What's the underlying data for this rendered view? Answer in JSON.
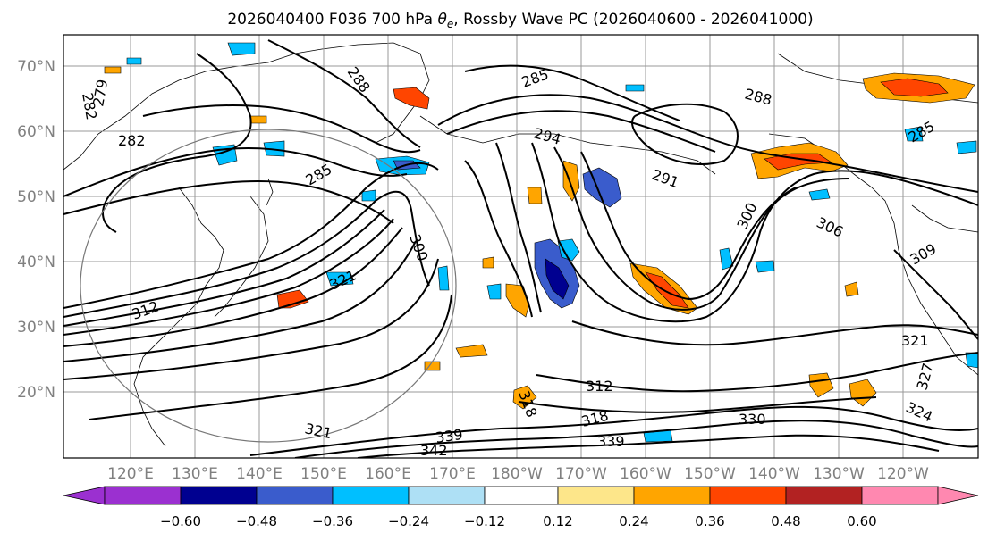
{
  "title": {
    "prefix": "2026040400 F036 700 hPa ",
    "theta": "θ",
    "sub": "e",
    "suffix": ", Rossby Wave PC (2026040600 - 2026041000)"
  },
  "map": {
    "lat_labels": [
      "70°N",
      "60°N",
      "50°N",
      "40°N",
      "30°N",
      "20°N"
    ],
    "lon_labels": [
      "120°E",
      "130°E",
      "140°E",
      "150°E",
      "160°E",
      "170°E",
      "180°W",
      "170°W",
      "160°W",
      "150°W",
      "140°W",
      "130°W",
      "120°W"
    ],
    "contour_labels": [
      {
        "text": "282"
      },
      {
        "text": "279"
      },
      {
        "text": "288"
      },
      {
        "text": "285"
      },
      {
        "text": "288"
      },
      {
        "text": "282"
      },
      {
        "text": "285"
      },
      {
        "text": "294"
      },
      {
        "text": "291"
      },
      {
        "text": "300"
      },
      {
        "text": "300"
      },
      {
        "text": "306"
      },
      {
        "text": "309"
      },
      {
        "text": "321"
      },
      {
        "text": "327"
      },
      {
        "text": "324"
      },
      {
        "text": "312"
      },
      {
        "text": "318"
      },
      {
        "text": "318"
      },
      {
        "text": "330"
      },
      {
        "text": "339"
      },
      {
        "text": "342"
      },
      {
        "text": "321"
      },
      {
        "text": "339"
      },
      {
        "text": "312"
      },
      {
        "text": "321"
      },
      {
        "text": "285"
      }
    ]
  },
  "colorbar": {
    "ticks": [
      "−0.60",
      "−0.48",
      "−0.36",
      "−0.24",
      "−0.12",
      "0.12",
      "0.24",
      "0.36",
      "0.48",
      "0.60"
    ],
    "colors": [
      "#9b30d0",
      "#000090",
      "#3a5ccc",
      "#00bfff",
      "#aee0f5",
      "#ffffff",
      "#fde68a",
      "#ffa500",
      "#ff4500",
      "#b22222",
      "#ff88b0"
    ]
  }
}
